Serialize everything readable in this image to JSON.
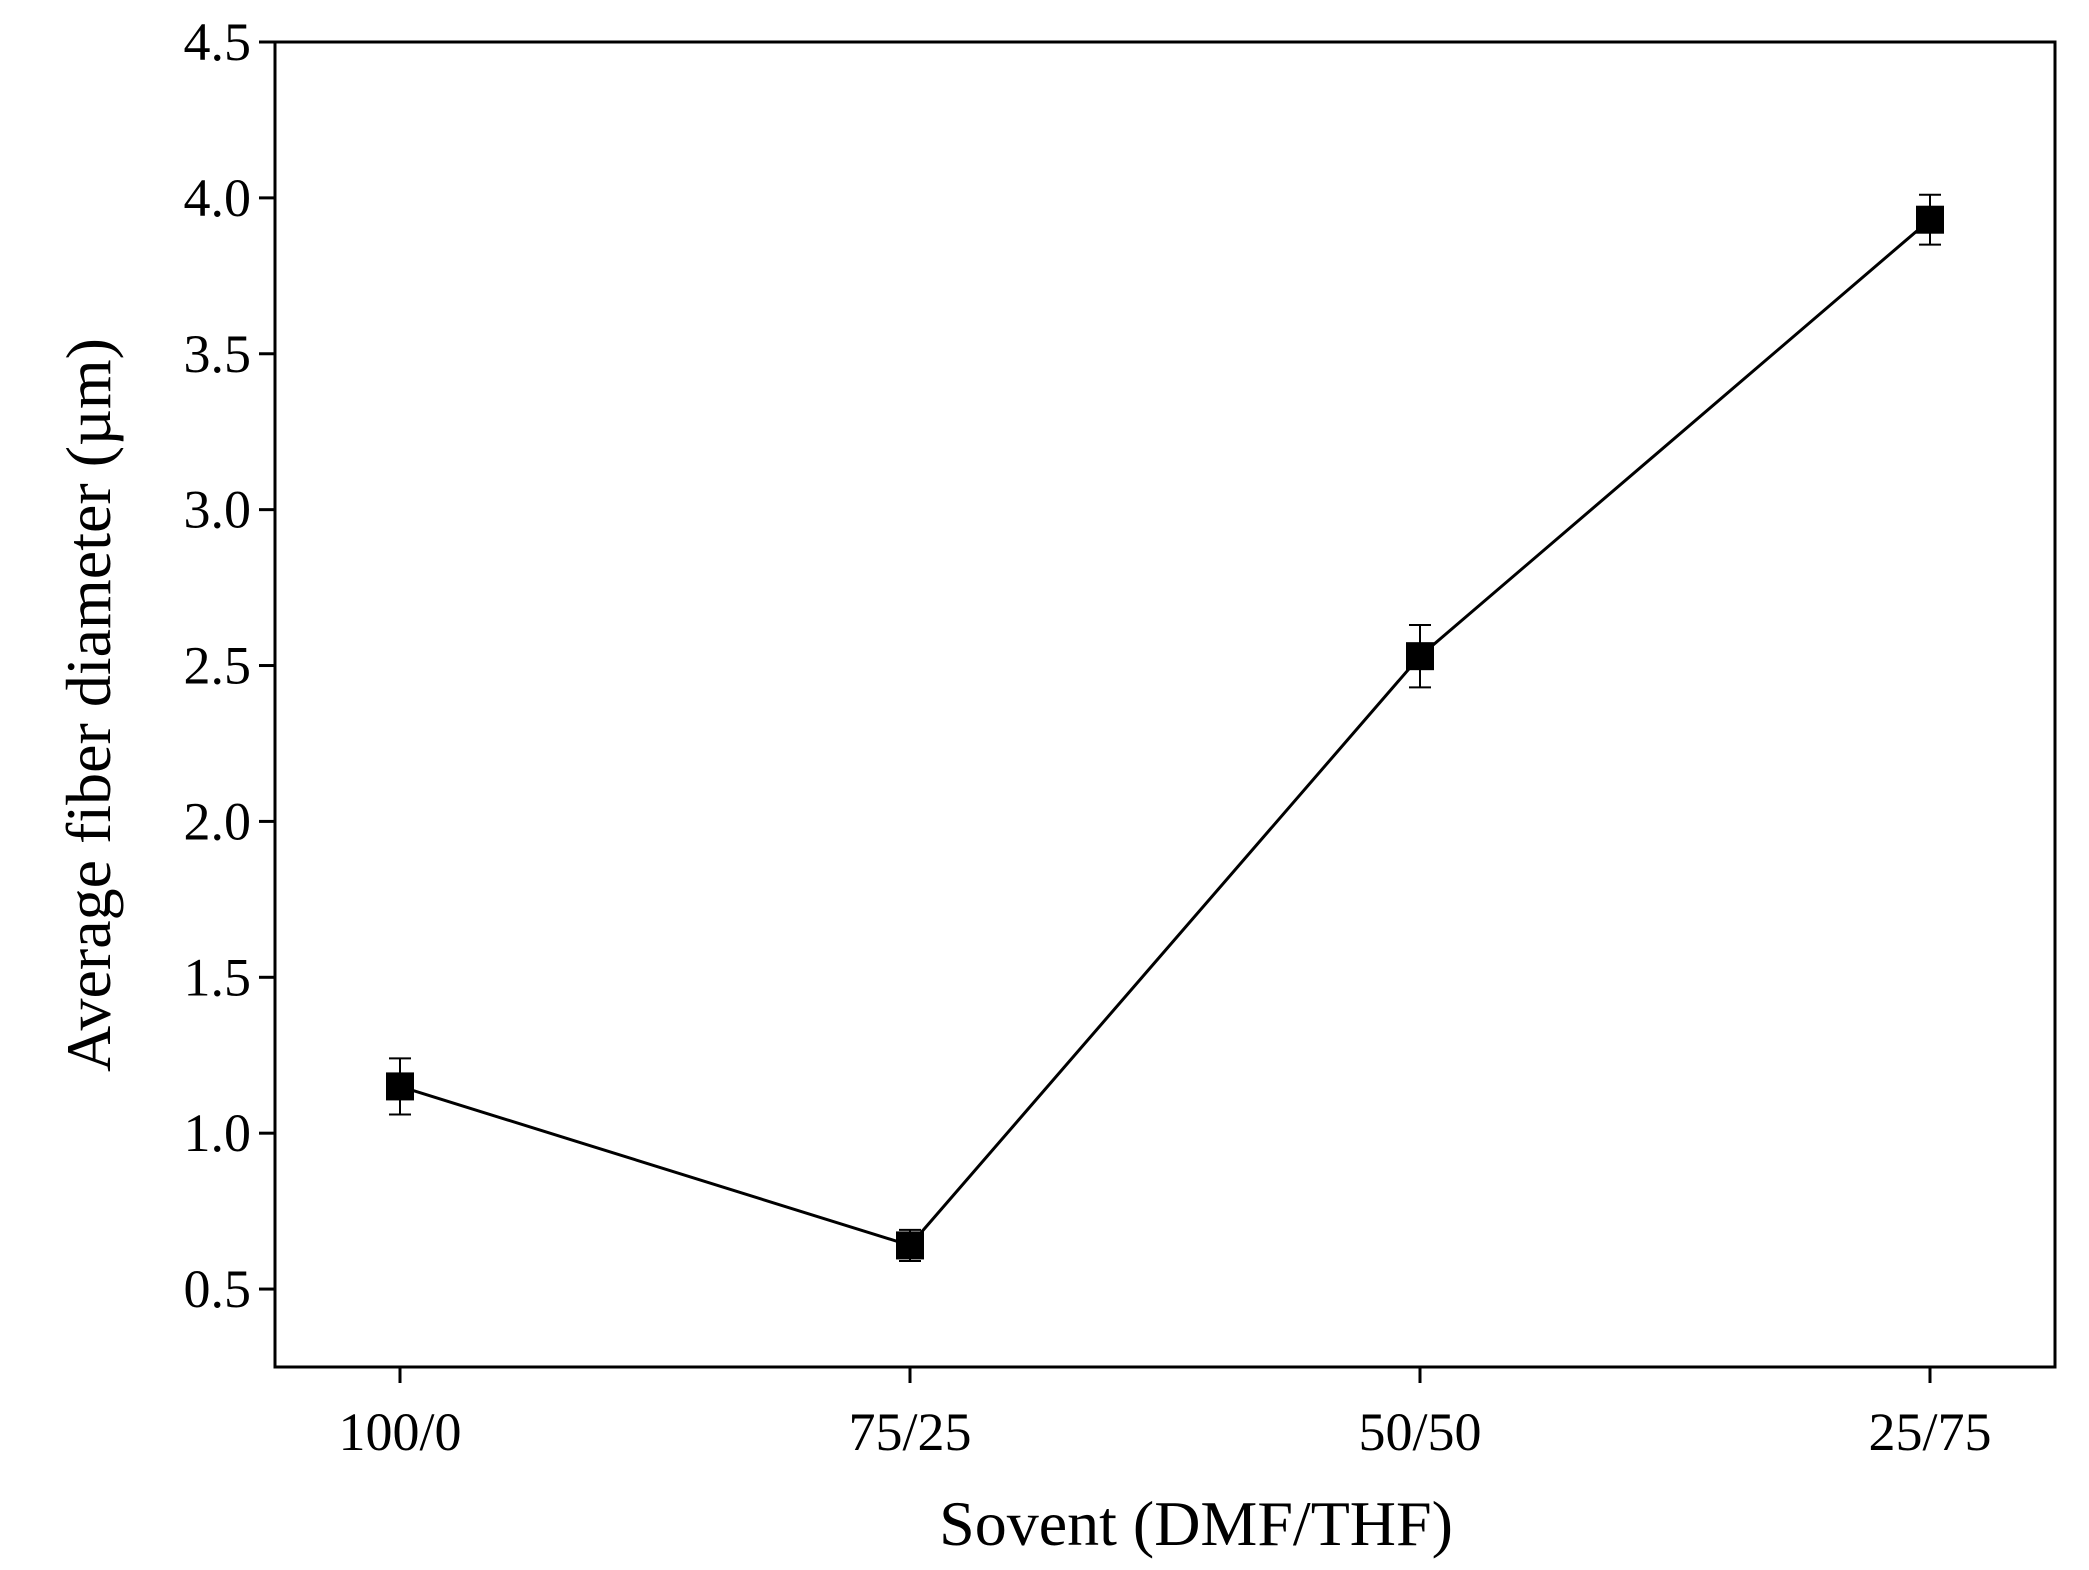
{
  "chart_data": {
    "type": "line",
    "categories": [
      "100/0",
      "75/25",
      "50/50",
      "25/75"
    ],
    "series": [
      {
        "values": [
          1.15,
          0.64,
          2.53,
          3.93
        ],
        "errors": [
          0.09,
          0.05,
          0.1,
          0.08
        ],
        "marker": "square",
        "color": "#000000"
      }
    ],
    "xlabel": "Sovent (DMF/THF)",
    "ylabel": "Average fiber diameter (µm)",
    "ylim": [
      0.25,
      4.5
    ],
    "yticks": [
      "0.5",
      "1.0",
      "1.5",
      "2.0",
      "2.5",
      "3.0",
      "3.5",
      "4.0",
      "4.5"
    ],
    "grid": false,
    "legend": "none"
  }
}
